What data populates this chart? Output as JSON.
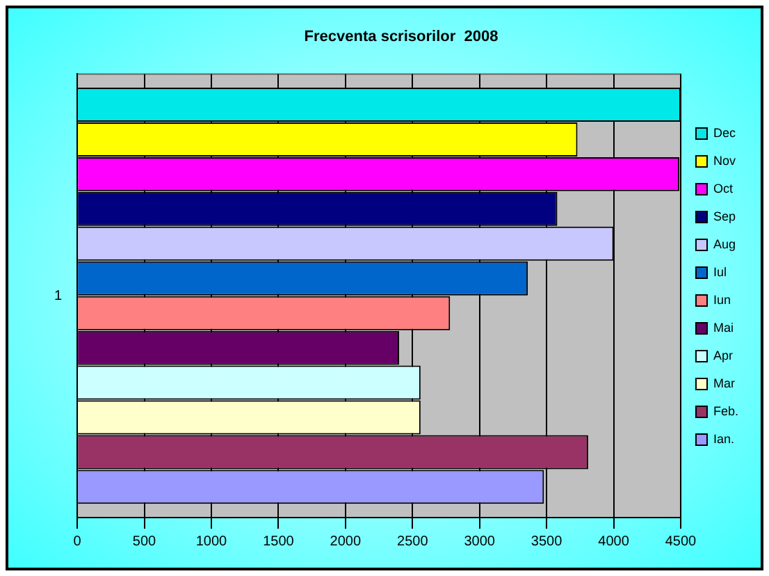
{
  "chart_data": {
    "type": "bar",
    "orientation": "horizontal",
    "title": "Frecventa scrisorilor  2008",
    "categories": [
      "1"
    ],
    "series": [
      {
        "name": "Dec",
        "color": "#00e8e8",
        "values": [
          4500
        ]
      },
      {
        "name": "Nov",
        "color": "#ffff00",
        "values": [
          3730
        ]
      },
      {
        "name": "Oct",
        "color": "#ff00ff",
        "values": [
          4490
        ]
      },
      {
        "name": "Sep",
        "color": "#000080",
        "values": [
          3580
        ]
      },
      {
        "name": "Aug",
        "color": "#c8c8ff",
        "values": [
          4000
        ]
      },
      {
        "name": "Iul",
        "color": "#0066cc",
        "values": [
          3360
        ]
      },
      {
        "name": "Iun",
        "color": "#ff8080",
        "values": [
          2780
        ]
      },
      {
        "name": "Mai",
        "color": "#660066",
        "values": [
          2400
        ]
      },
      {
        "name": "Apr",
        "color": "#ccffff",
        "values": [
          2560
        ]
      },
      {
        "name": "Mar",
        "color": "#ffffcc",
        "values": [
          2560
        ]
      },
      {
        "name": "Feb.",
        "color": "#993366",
        "values": [
          3810
        ]
      },
      {
        "name": "Ian.",
        "color": "#9999ff",
        "values": [
          3480
        ]
      }
    ],
    "xlim": [
      0,
      4500
    ],
    "xticks": [
      0,
      500,
      1000,
      1500,
      2000,
      2500,
      3000,
      3500,
      4000,
      4500
    ],
    "grid": "x",
    "legend": "right"
  }
}
